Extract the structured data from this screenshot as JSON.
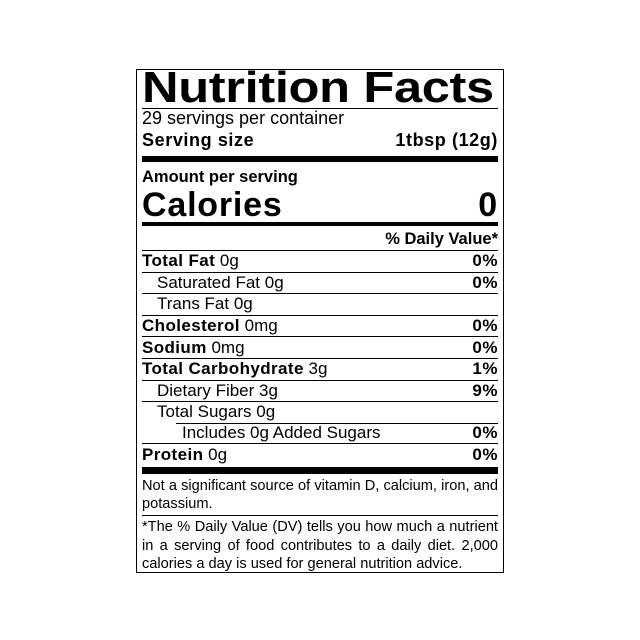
{
  "title": "Nutrition Facts",
  "servings_per_container": "29 servings per container",
  "serving_size": {
    "label": "Serving size",
    "value": "1tbsp (12g)"
  },
  "amount_per_serving": "Amount per serving",
  "calories": {
    "label": "Calories",
    "value": "0"
  },
  "daily_value_header": "% Daily Value*",
  "nutrients": [
    {
      "name": "Total Fat",
      "amount": "0g",
      "dv": "0%",
      "bold": true,
      "indent": 0
    },
    {
      "name": "Saturated Fat",
      "amount": "0g",
      "dv": "0%",
      "bold": false,
      "indent": 1
    },
    {
      "name": "Trans Fat",
      "amount": "0g",
      "dv": "",
      "bold": false,
      "indent": 1
    },
    {
      "name": "Cholesterol",
      "amount": "0mg",
      "dv": "0%",
      "bold": true,
      "indent": 0
    },
    {
      "name": "Sodium",
      "amount": "0mg",
      "dv": "0%",
      "bold": true,
      "indent": 0
    },
    {
      "name": "Total Carbohydrate",
      "amount": "3g",
      "dv": "1%",
      "bold": true,
      "indent": 0
    },
    {
      "name": "Dietary Fiber",
      "amount": "3g",
      "dv": "9%",
      "bold": false,
      "indent": 1
    },
    {
      "name": "Total Sugars",
      "amount": "0g",
      "dv": "",
      "bold": false,
      "indent": 1
    },
    {
      "name": "Includes 0g Added Sugars",
      "amount": "",
      "dv": "0%",
      "bold": false,
      "indent": 2
    },
    {
      "name": "Protein",
      "amount": "0g",
      "dv": "0%",
      "bold": true,
      "indent": 0
    }
  ],
  "footnote_vitamins": "Not a significant source of vitamin D, calcium, iron, and potassium.",
  "footnote_dv": "*The % Daily Value (DV) tells you how much a nutrient in a serving of food contributes to a daily diet. 2,000 calories a day is used for general nutrition advice."
}
